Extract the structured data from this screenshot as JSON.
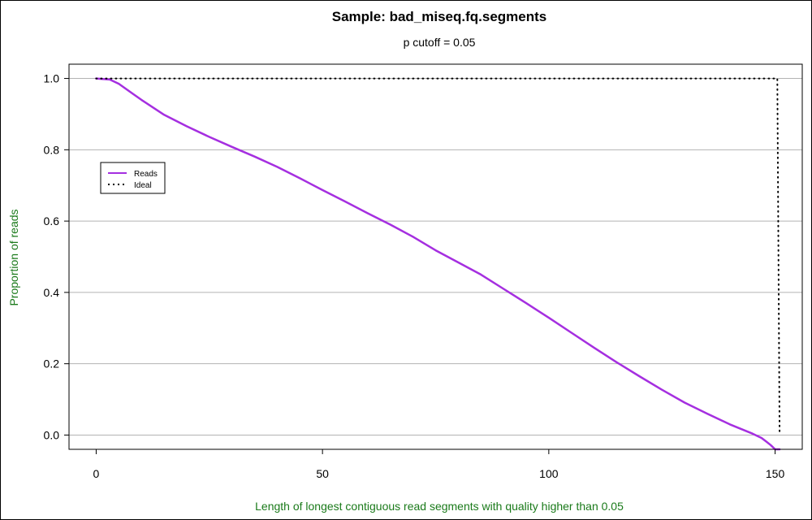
{
  "chart_data": {
    "type": "line",
    "title": "Sample:  bad_miseq.fq.segments",
    "subtitle": "p cutoff =  0.05",
    "xlabel": "Length of longest contiguous read segments with quality higher than 0.05",
    "ylabel": "Proportion of reads",
    "xlim": [
      -6,
      156
    ],
    "ylim": [
      -0.04,
      1.04
    ],
    "x_ticks": [
      0,
      50,
      100,
      150
    ],
    "y_ticks": [
      0.0,
      0.2,
      0.4,
      0.6,
      0.8,
      1.0
    ],
    "x_tick_labels": [
      "0",
      "50",
      "100",
      "150"
    ],
    "y_tick_labels": [
      "0.0",
      "0.2",
      "0.4",
      "0.6",
      "0.8",
      "1.0"
    ],
    "grid": "horizontal",
    "legend_position": "upper-left",
    "series": [
      {
        "name": "Reads",
        "color": "#a52fe0",
        "style": "solid",
        "x": [
          0,
          3,
          5,
          8,
          10,
          15,
          20,
          25,
          30,
          35,
          40,
          45,
          50,
          55,
          60,
          65,
          70,
          75,
          80,
          85,
          90,
          95,
          100,
          105,
          110,
          115,
          120,
          125,
          130,
          135,
          140,
          145,
          147,
          148,
          149,
          150,
          151
        ],
        "y": [
          1.0,
          0.997,
          0.985,
          0.958,
          0.94,
          0.898,
          0.866,
          0.836,
          0.808,
          0.781,
          0.752,
          0.72,
          0.687,
          0.655,
          0.622,
          0.59,
          0.556,
          0.518,
          0.484,
          0.45,
          0.41,
          0.37,
          0.329,
          0.287,
          0.245,
          0.204,
          0.165,
          0.127,
          0.091,
          0.06,
          0.03,
          0.004,
          -0.008,
          -0.018,
          -0.028,
          -0.04,
          -0.04
        ]
      },
      {
        "name": "Ideal",
        "color": "#000000",
        "style": "dotted",
        "x": [
          0,
          150.5,
          151
        ],
        "y": [
          1.0,
          1.0,
          0.0
        ]
      }
    ]
  }
}
